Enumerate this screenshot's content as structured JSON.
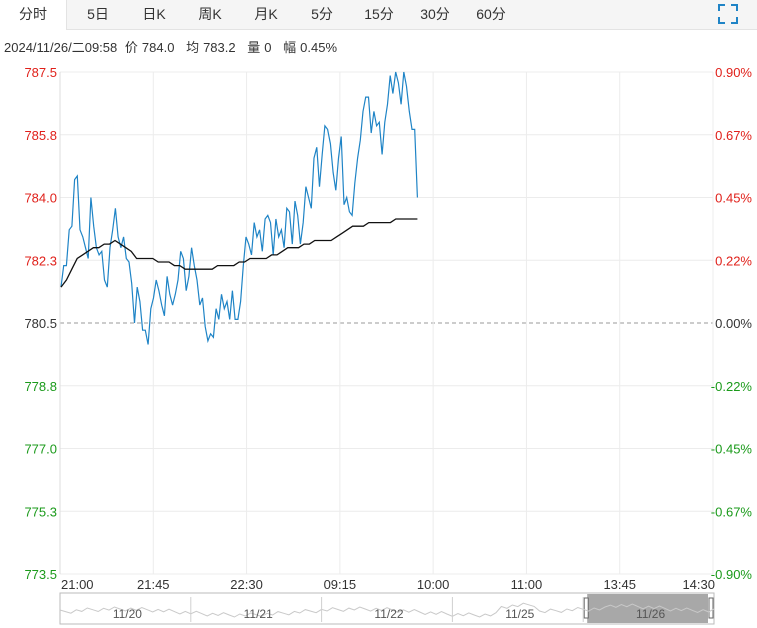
{
  "tabs": [
    {
      "label": "分时",
      "active": true
    },
    {
      "label": "5日",
      "active": false
    },
    {
      "label": "日K",
      "active": false
    },
    {
      "label": "周K",
      "active": false
    },
    {
      "label": "月K",
      "active": false
    },
    {
      "label": "5分",
      "active": false
    },
    {
      "label": "15分",
      "active": false
    },
    {
      "label": "30分",
      "active": false
    },
    {
      "label": "60分",
      "active": false
    }
  ],
  "fullscreen_icon": "expand-corners-icon",
  "info": {
    "datetime": "2024/11/26/二09:58",
    "price_label": "价",
    "price": "784.0",
    "avg_label": "均",
    "avg": "783.2",
    "volume_label": "量",
    "volume": "0",
    "change_label": "幅",
    "change": "0.45%"
  },
  "colors": {
    "price_line": "#1f84c6",
    "avg_line": "#111111",
    "up": "#e0201a",
    "down": "#1a9a1a",
    "grid": "#ececec",
    "baseline": "#999999"
  },
  "chart_data": {
    "type": "line",
    "ylim": [
      773.5,
      787.5
    ],
    "y_ticks": [
      "787.5",
      "785.8",
      "784.0",
      "782.3",
      "780.5",
      "778.8",
      "777.0",
      "775.3",
      "773.5"
    ],
    "pct_ticks": [
      "0.90%",
      "0.67%",
      "0.45%",
      "0.22%",
      "0.00%",
      "-0.22%",
      "-0.45%",
      "-0.67%",
      "-0.90%"
    ],
    "baseline": 780.5,
    "x_ticks": [
      "21:00",
      "21:45",
      "22:30",
      "09:15",
      "10:00",
      "11:00",
      "13:45",
      "14:30"
    ],
    "series": [
      {
        "key": "price",
        "values": [
          781.5,
          782.1,
          782.1,
          783.1,
          783.2,
          784.5,
          784.6,
          783.1,
          782.9,
          782.6,
          782.3,
          784.0,
          783.2,
          782.6,
          782.4,
          782.5,
          781.7,
          781.5,
          782.6,
          783.1,
          783.7,
          782.9,
          782.6,
          782.9,
          782.3,
          782.2,
          781.6,
          780.5,
          781.5,
          781.1,
          780.3,
          780.3,
          779.9,
          780.9,
          781.2,
          781.7,
          781.4,
          781.0,
          780.7,
          781.8,
          781.3,
          781.0,
          781.3,
          781.7,
          782.5,
          782.3,
          781.4,
          781.8,
          782.6,
          782.1,
          781.7,
          781.0,
          781.2,
          780.4,
          780.0,
          780.2,
          780.1,
          780.9,
          780.6,
          781.3,
          780.9,
          781.1,
          780.6,
          781.4,
          780.6,
          780.6,
          781.1,
          782.1,
          782.9,
          782.7,
          782.4,
          783.3,
          782.9,
          783.1,
          782.5,
          783.4,
          783.5,
          783.3,
          782.4,
          783.4,
          782.9,
          783.1,
          782.6,
          783.7,
          783.6,
          782.7,
          783.9,
          783.5,
          782.7,
          783.3,
          784.3,
          784.0,
          783.7,
          785.1,
          785.4,
          784.3,
          785.2,
          786.0,
          785.9,
          785.5,
          784.7,
          784.2,
          785.1,
          785.7,
          783.8,
          784.0,
          783.6,
          783.5,
          784.4,
          785.1,
          785.6,
          786.4,
          786.8,
          786.8,
          785.8,
          786.4,
          786.0,
          786.1,
          785.2,
          786.1,
          786.6,
          787.4,
          786.9,
          787.5,
          787.2,
          786.6,
          787.5,
          787.1,
          786.4,
          785.9,
          785.9,
          784.0
        ],
        "color": "#1f84c6"
      },
      {
        "key": "average",
        "values": [
          781.5,
          781.7,
          782.0,
          782.3,
          782.4,
          782.5,
          782.6,
          782.6,
          782.7,
          782.7,
          782.8,
          782.7,
          782.6,
          782.5,
          782.3,
          782.3,
          782.3,
          782.3,
          782.2,
          782.2,
          782.2,
          782.1,
          782.1,
          782.0,
          782.0,
          782.0,
          782.0,
          782.0,
          782.0,
          782.1,
          782.1,
          782.1,
          782.1,
          782.2,
          782.2,
          782.3,
          782.3,
          782.3,
          782.3,
          782.4,
          782.4,
          782.5,
          782.6,
          782.6,
          782.6,
          782.7,
          782.7,
          782.8,
          782.8,
          782.8,
          782.8,
          782.9,
          783.0,
          783.1,
          783.2,
          783.2,
          783.2,
          783.3,
          783.3,
          783.3,
          783.3,
          783.3,
          783.4,
          783.4,
          783.4,
          783.4,
          783.4
        ]
      }
    ],
    "navigator": {
      "dates": [
        "11/20",
        "11/21",
        "11/22",
        "11/25",
        "11/26"
      ],
      "selected": "11/26"
    }
  }
}
